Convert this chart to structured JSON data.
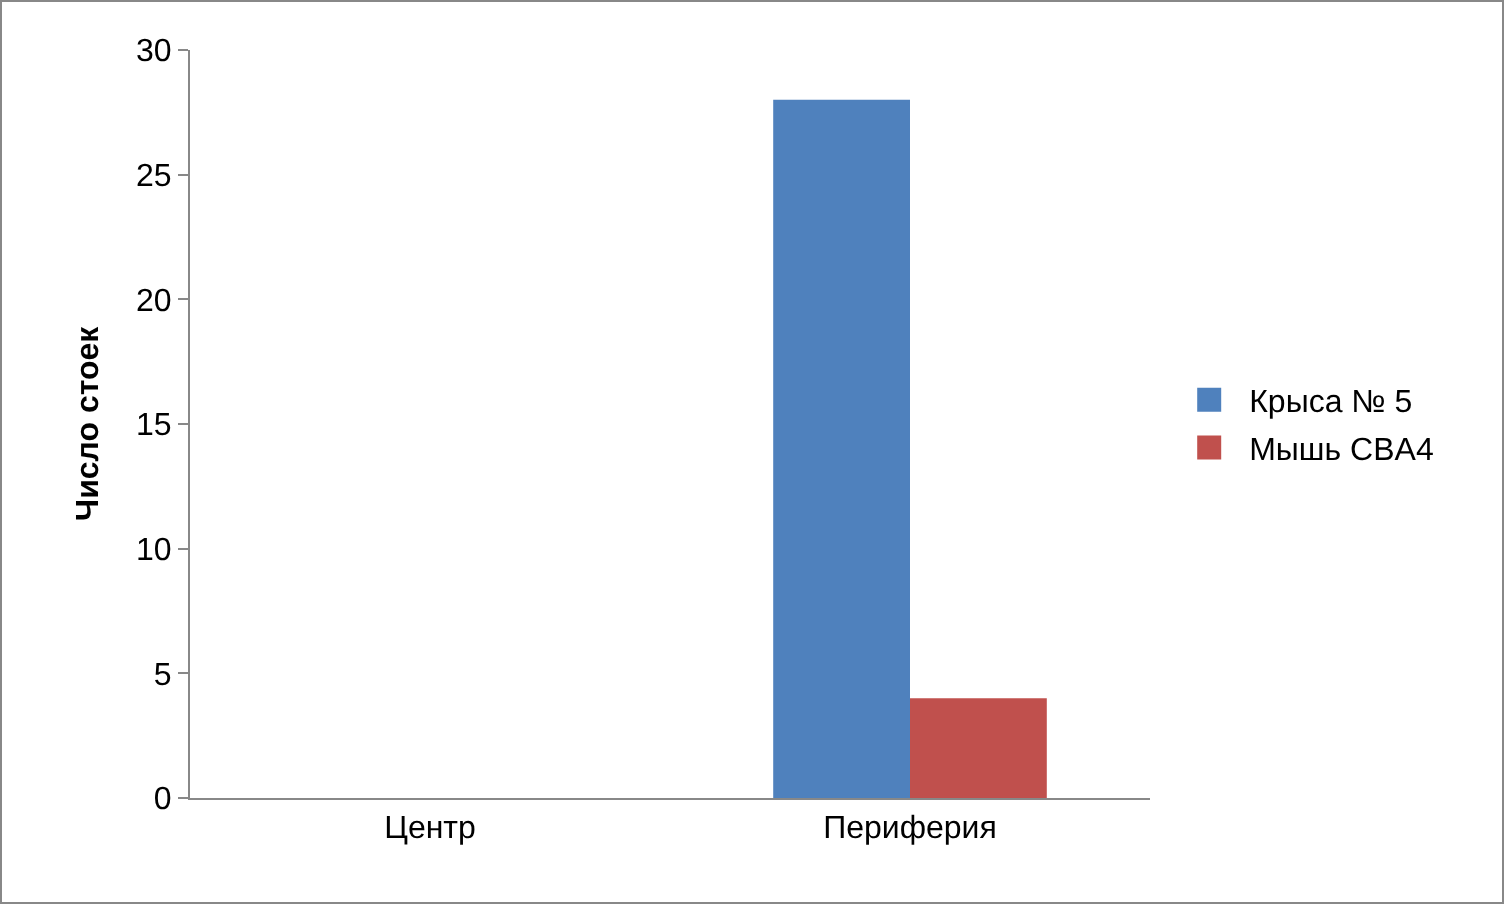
{
  "chart_data": {
    "type": "bar",
    "ylabel": "Число стоек",
    "categories": [
      "Центр",
      "Периферия"
    ],
    "series": [
      {
        "name": "Крыса № 5",
        "color": "#4f81bd",
        "values": [
          0,
          28
        ]
      },
      {
        "name": "Мышь CBA4",
        "color": "#c0504d",
        "values": [
          0,
          4
        ]
      }
    ],
    "ylim": [
      0,
      30
    ],
    "yticks": [
      0,
      5,
      10,
      15,
      20,
      25,
      30
    ],
    "grid": false,
    "legend": "right"
  }
}
